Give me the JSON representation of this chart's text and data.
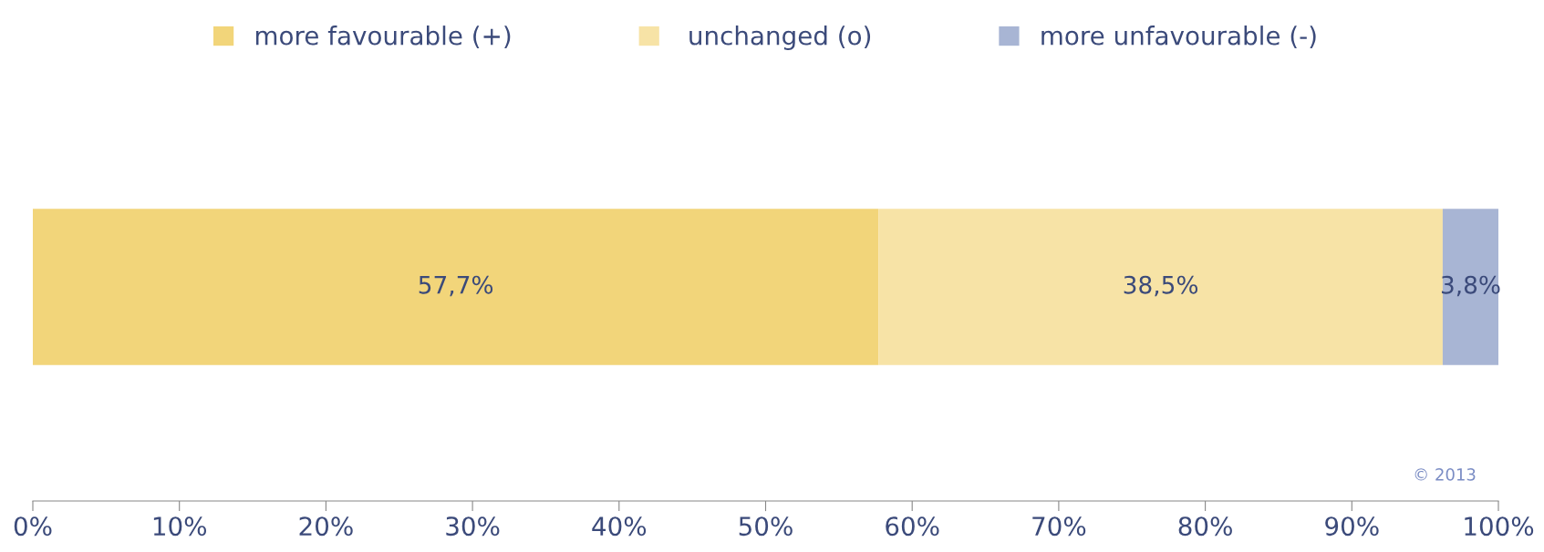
{
  "chart_data": {
    "type": "bar",
    "orientation": "horizontal",
    "stacked": true,
    "categories": [
      null
    ],
    "series": [
      {
        "name": "more favourable (+)",
        "color": "#f2d57a",
        "values": [
          57.7
        ],
        "value_labels": [
          "57,7%"
        ]
      },
      {
        "name": " unchanged (o)",
        "color": "#f7e3a6",
        "values": [
          38.5
        ],
        "value_labels": [
          "38,5%"
        ]
      },
      {
        "name": "more unfavourable (-)",
        "color": "#a8b5d4",
        "values": [
          3.8
        ],
        "value_labels": [
          "3,8%"
        ]
      }
    ],
    "xlim": [
      0,
      100
    ],
    "xticks": [
      {
        "value": 0,
        "label": "0%"
      },
      {
        "value": 10,
        "label": "10%"
      },
      {
        "value": 20,
        "label": "20%"
      },
      {
        "value": 30,
        "label": "30%"
      },
      {
        "value": 40,
        "label": "40%"
      },
      {
        "value": 50,
        "label": "50%"
      },
      {
        "value": 60,
        "label": "60%"
      },
      {
        "value": 70,
        "label": "70%"
      },
      {
        "value": 80,
        "label": "80%"
      },
      {
        "value": 90,
        "label": "90%"
      },
      {
        "value": 100,
        "label": "100%"
      }
    ],
    "tick_labels": "x",
    "legend": "top",
    "grid": false,
    "annotations": [
      "© 2013"
    ]
  }
}
